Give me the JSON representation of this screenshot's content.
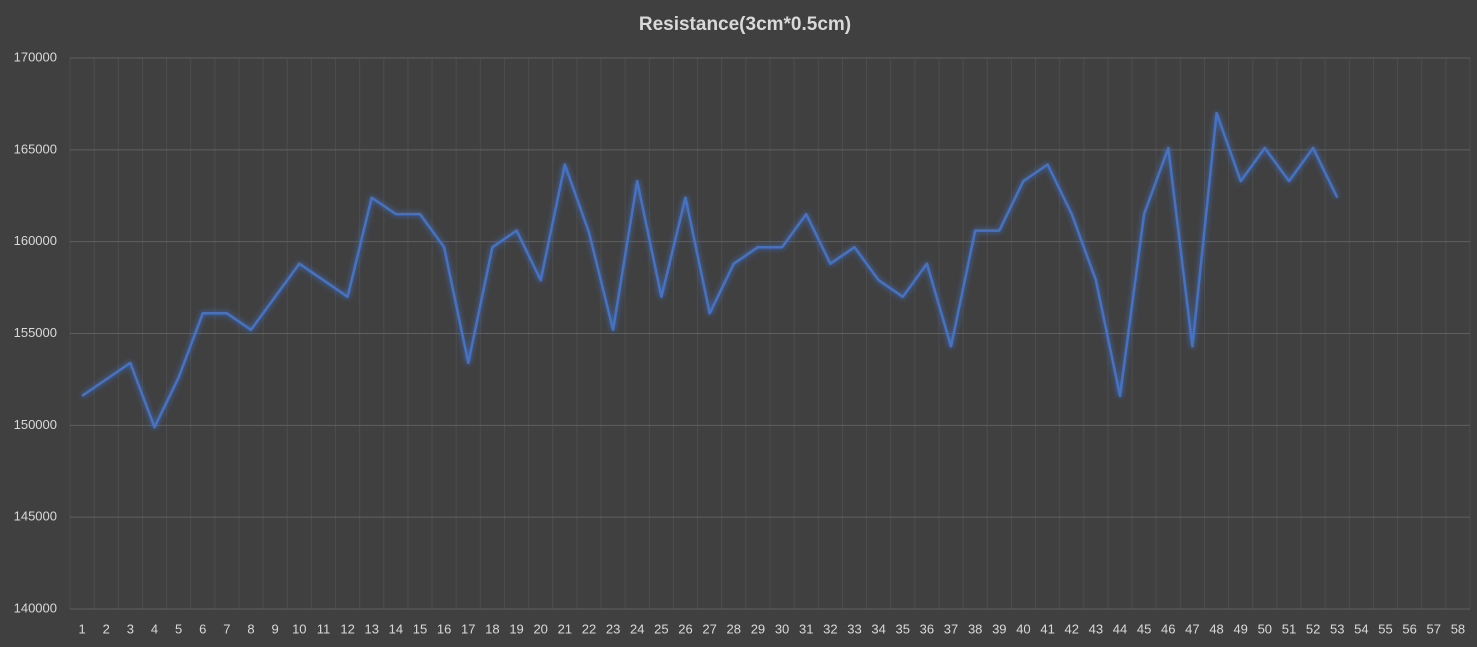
{
  "chart_data": {
    "type": "line",
    "title": "Resistance(3cm*0.5cm)",
    "categories": [
      "1",
      "2",
      "3",
      "4",
      "5",
      "6",
      "7",
      "8",
      "9",
      "10",
      "11",
      "12",
      "13",
      "14",
      "15",
      "16",
      "17",
      "18",
      "19",
      "20",
      "21",
      "22",
      "23",
      "24",
      "25",
      "26",
      "27",
      "28",
      "29",
      "30",
      "31",
      "32",
      "33",
      "34",
      "35",
      "36",
      "37",
      "38",
      "39",
      "40",
      "41",
      "42",
      "43",
      "44",
      "45",
      "46",
      "47",
      "48",
      "49",
      "50",
      "51",
      "52",
      "53",
      "54",
      "55",
      "56",
      "57",
      "58"
    ],
    "series": [
      {
        "name": "Resistance",
        "color": "#4472c4",
        "values": [
          151600,
          152500,
          153400,
          149900,
          152600,
          156100,
          156100,
          155200,
          157000,
          158800,
          157900,
          157000,
          162400,
          161500,
          161500,
          159700,
          153400,
          159700,
          160600,
          157900,
          164200,
          160500,
          155200,
          163300,
          157000,
          162400,
          156100,
          158800,
          159700,
          159700,
          161500,
          158800,
          159700,
          157900,
          157000,
          158800,
          154300,
          160600,
          160600,
          163300,
          164200,
          161500,
          157900,
          151600,
          161500,
          165100,
          154300,
          167000,
          163300,
          165100,
          163300,
          165100,
          162400,
          null,
          null,
          null,
          null,
          null
        ]
      }
    ],
    "ylim": [
      140000,
      170000
    ],
    "yticks": [
      140000,
      145000,
      150000,
      155000,
      160000,
      165000,
      170000
    ],
    "grid": true
  }
}
